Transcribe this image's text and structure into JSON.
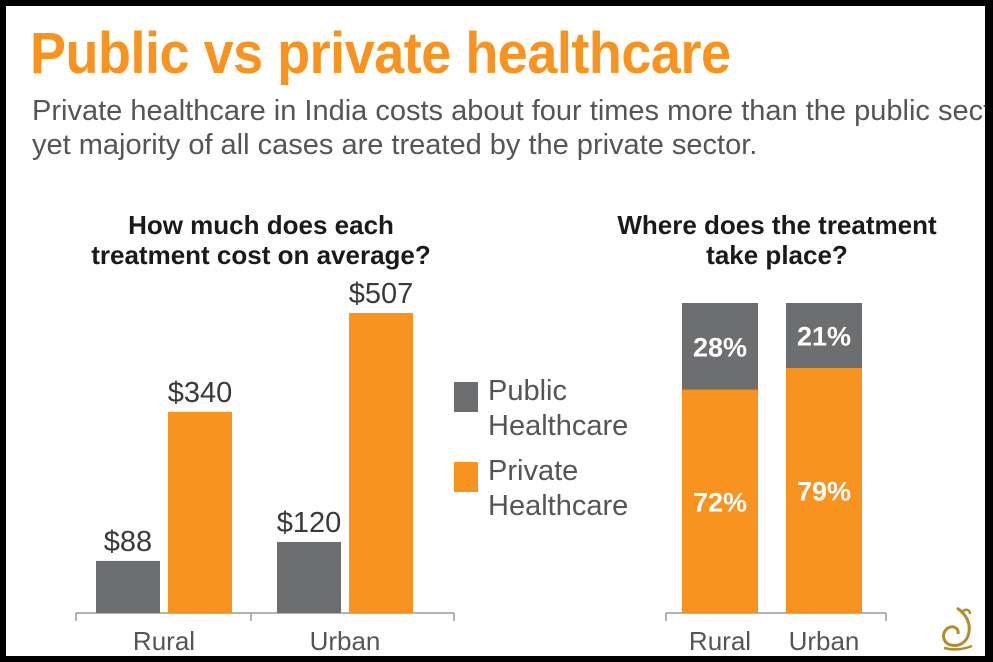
{
  "title": "Public vs private healthcare",
  "subtitle": [
    "Private healthcare in India costs about four times more than the public sector,",
    "yet majority of all cases are treated by the private sector."
  ],
  "colors": {
    "public": "#6D6E70",
    "private": "#F7931E",
    "title": "#F7931E",
    "text": "#555555"
  },
  "legend": [
    {
      "key": "public",
      "lines": [
        "Public",
        "Healthcare"
      ]
    },
    {
      "key": "private",
      "lines": [
        "Private",
        "Healthcare"
      ]
    }
  ],
  "chart_data": [
    {
      "type": "bar",
      "title": [
        "How much does each",
        "treatment cost on average?"
      ],
      "categories": [
        "Rural",
        "Urban"
      ],
      "series": [
        {
          "name": "Public Healthcare",
          "values": [
            88,
            120
          ],
          "labels": [
            "$88",
            "$120"
          ]
        },
        {
          "name": "Private Healthcare",
          "values": [
            340,
            507
          ],
          "labels": [
            "$340",
            "$507"
          ]
        }
      ],
      "unit": "$",
      "ylim": [
        0,
        507
      ],
      "grid": false
    },
    {
      "type": "bar",
      "stacked": true,
      "title": [
        "Where does the treatment",
        "take place?"
      ],
      "categories": [
        "Rural",
        "Urban"
      ],
      "series": [
        {
          "name": "Private Healthcare",
          "values": [
            72,
            79
          ],
          "labels": [
            "72%",
            "79%"
          ]
        },
        {
          "name": "Public Healthcare",
          "values": [
            28,
            21
          ],
          "labels": [
            "28%",
            "21%"
          ]
        }
      ],
      "unit": "%",
      "ylim": [
        0,
        100
      ],
      "grid": false
    }
  ]
}
